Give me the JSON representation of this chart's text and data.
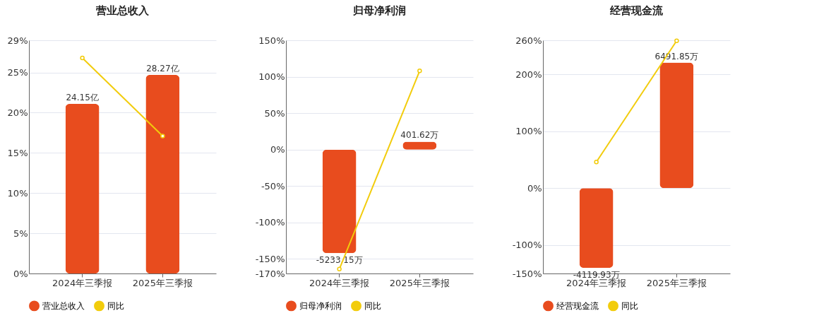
{
  "chart_data": [
    {
      "type": "bar",
      "title": "营业总收入",
      "categories": [
        "2024年三季报",
        "2025年三季报"
      ],
      "series": [
        {
          "name": "营业总收入",
          "axis": "y2",
          "color": "#e84c1e",
          "values": [
            24.15,
            28.27
          ],
          "value_labels": [
            "24.15亿",
            "28.27亿"
          ]
        },
        {
          "name": "同比",
          "type": "line",
          "color": "#f2cc0c",
          "values": [
            26.8,
            17.1
          ],
          "marker": "circle"
        }
      ],
      "ylim": [
        0,
        29
      ],
      "yticks": [
        {
          "value": 0,
          "label": "0%"
        },
        {
          "value": 5,
          "label": "5%"
        },
        {
          "value": 10,
          "label": "10%"
        },
        {
          "value": 15,
          "label": "15%"
        },
        {
          "value": 20,
          "label": "20%"
        },
        {
          "value": 25,
          "label": "25%"
        },
        {
          "value": 29,
          "label": "29%"
        }
      ],
      "y2lim": [
        0,
        33.2
      ],
      "grid": "y",
      "legend": "bottom"
    },
    {
      "type": "bar",
      "title": "归母净利润",
      "categories": [
        "2024年三季报",
        "2025年三季报"
      ],
      "series": [
        {
          "name": "归母净利润",
          "axis": "y2",
          "color": "#e84c1e",
          "values": [
            -5233.15,
            401.62
          ],
          "value_labels": [
            "-5233.15万",
            "401.62万"
          ]
        },
        {
          "name": "同比",
          "type": "line",
          "color": "#f2cc0c",
          "values": [
            -164,
            108
          ],
          "marker": "circle"
        }
      ],
      "ylim": [
        -170,
        150
      ],
      "yticks": [
        {
          "value": -170,
          "label": "-170%"
        },
        {
          "value": -150,
          "label": "-150%"
        },
        {
          "value": -100,
          "label": "-100%"
        },
        {
          "value": -50,
          "label": "-50%"
        },
        {
          "value": 0,
          "label": "0%"
        },
        {
          "value": 50,
          "label": "50%"
        },
        {
          "value": 100,
          "label": "100%"
        },
        {
          "value": 150,
          "label": "150%"
        }
      ],
      "y2lim": [
        -6256,
        5520
      ],
      "grid": "y",
      "legend": "bottom"
    },
    {
      "type": "bar",
      "title": "经营现金流",
      "categories": [
        "2024年三季报",
        "2025年三季报"
      ],
      "series": [
        {
          "name": "经营现金流",
          "axis": "y2",
          "color": "#e84c1e",
          "values": [
            -4119.93,
            6491.85
          ],
          "value_labels": [
            "-4119.93万",
            "6491.85万"
          ]
        },
        {
          "name": "同比",
          "type": "line",
          "color": "#f2cc0c",
          "values": [
            46,
            259
          ],
          "marker": "circle"
        }
      ],
      "ylim": [
        -150,
        260
      ],
      "yticks": [
        {
          "value": -150,
          "label": "-150%"
        },
        {
          "value": -100,
          "label": "-100%"
        },
        {
          "value": 0,
          "label": "0%"
        },
        {
          "value": 100,
          "label": "100%"
        },
        {
          "value": 200,
          "label": "200%"
        },
        {
          "value": 260,
          "label": "260%"
        }
      ],
      "y2lim": [
        -4410,
        7644
      ],
      "grid": "y",
      "legend": "bottom"
    }
  ]
}
